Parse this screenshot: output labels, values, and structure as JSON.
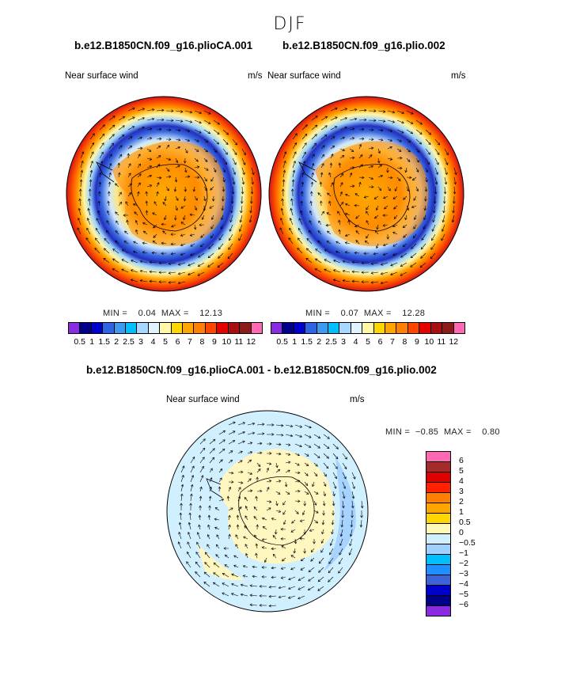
{
  "title": "DJF",
  "panels": [
    {
      "case": "b.e12.B1850CN.f09_g16.plioCA.001",
      "variable": "Near surface wind",
      "units": "m/s",
      "min_label": "MIN =",
      "min": "0.04",
      "max_label": "MAX =",
      "max": "12.13"
    },
    {
      "case": "b.e12.B1850CN.f09_g16.plio.002",
      "variable": "Near surface wind",
      "units": "m/s",
      "min_label": "MIN =",
      "min": "0.07",
      "max_label": "MAX =",
      "max": "12.28"
    }
  ],
  "diff_panel": {
    "title": "b.e12.B1850CN.f09_g16.plioCA.001 - b.e12.B1850CN.f09_g16.plio.002",
    "variable": "Near surface wind",
    "units": "m/s",
    "min_label": "MIN =",
    "min": "−0.85",
    "max_label": "MAX =",
    "max": "0.80"
  },
  "colorbar_top": {
    "colors": [
      "#8a2be2",
      "#00008b",
      "#0000cd",
      "#2f64e0",
      "#3c9af0",
      "#00bfff",
      "#a6d8ff",
      "#dff4ff",
      "#fff6a8",
      "#ffd700",
      "#ffa500",
      "#ff7f00",
      "#ff4500",
      "#e50000",
      "#a81010",
      "#8b1a1a",
      "#ff69b4"
    ],
    "labels": [
      "0.5",
      "1",
      "1.5",
      "2",
      "2.5",
      "3",
      "4",
      "5",
      "6",
      "7",
      "8",
      "9",
      "10",
      "11",
      "12"
    ]
  },
  "colorbar_diff": {
    "colors": [
      "#ff69b4",
      "#a52a2a",
      "#e00000",
      "#ff2200",
      "#ff7f00",
      "#ffa500",
      "#ffd700",
      "#fff9b8",
      "#d0f0ff",
      "#a0d0ff",
      "#00bfff",
      "#1e90ff",
      "#3a63d8",
      "#0000cd",
      "#00008b",
      "#8a2be2"
    ],
    "labels": [
      "6",
      "5",
      "4",
      "3",
      "2",
      "1",
      "0.5",
      "0",
      "−0.5",
      "−1",
      "−2",
      "−3",
      "−4",
      "−5",
      "−6"
    ]
  }
}
